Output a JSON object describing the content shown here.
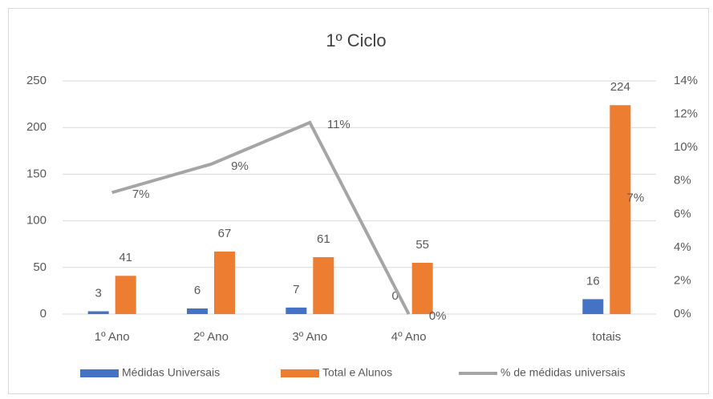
{
  "chart_data": {
    "type": "bar",
    "title": "1º Ciclo",
    "categories": [
      "1º Ano",
      "2º Ano",
      "3º Ano",
      "4º Ano",
      null,
      "totais"
    ],
    "series": [
      {
        "name": "Médidas Universais",
        "color": "#4472c4",
        "type": "bar",
        "values": [
          3,
          6,
          7,
          0,
          null,
          16
        ]
      },
      {
        "name": "Total e Alunos",
        "color": "#ed7d31",
        "type": "bar",
        "values": [
          41,
          67,
          61,
          55,
          null,
          224
        ]
      },
      {
        "name": "% de médidas universais",
        "color": "#a5a5a5",
        "type": "line",
        "axis": "y2",
        "values": [
          7.3,
          9.0,
          11.5,
          0,
          null,
          7.1
        ],
        "value_labels": [
          "7%",
          "9%",
          "11%",
          "0%",
          null,
          "7%"
        ]
      }
    ],
    "ylim": [
      0,
      250
    ],
    "yticks": [
      0,
      50,
      100,
      150,
      200,
      250
    ],
    "y2lim": [
      0,
      14
    ],
    "y2ticks": [
      {
        "value": 0,
        "label": "0%"
      },
      {
        "value": 2,
        "label": "2%"
      },
      {
        "value": 4,
        "label": "4%"
      },
      {
        "value": 6,
        "label": "6%"
      },
      {
        "value": 8,
        "label": "8%"
      },
      {
        "value": 10,
        "label": "10%"
      },
      {
        "value": 12,
        "label": "12%"
      },
      {
        "value": 14,
        "label": "14%"
      }
    ],
    "grid": true,
    "legend": "bottom"
  }
}
